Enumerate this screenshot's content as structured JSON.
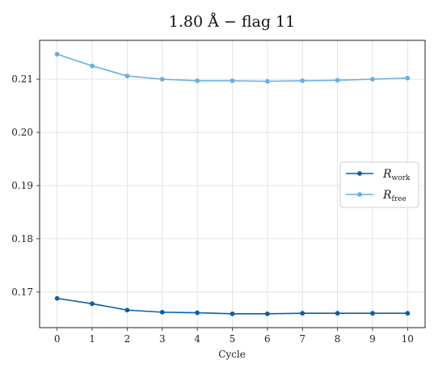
{
  "chart_data": {
    "type": "line",
    "title": "1.80 Å  −  flag 11",
    "xlabel": "Cycle",
    "ylabel": "",
    "x": [
      0,
      1,
      2,
      3,
      4,
      5,
      6,
      7,
      8,
      9,
      10
    ],
    "xlim": [
      -0.5,
      10.5
    ],
    "ylim": [
      0.1633,
      0.2173
    ],
    "xticks": [
      "0",
      "1",
      "2",
      "3",
      "4",
      "5",
      "6",
      "7",
      "8",
      "9",
      "10"
    ],
    "yticks": [
      "0.17",
      "0.18",
      "0.19",
      "0.20",
      "0.21"
    ],
    "ytick_values": [
      0.17,
      0.18,
      0.19,
      0.2,
      0.21
    ],
    "grid": true,
    "legend_position": "center-right",
    "series": [
      {
        "name": "R_work",
        "symbol": "R",
        "subscript": "work",
        "color": "#0a5fa8",
        "values": [
          0.1688,
          0.1678,
          0.1666,
          0.1662,
          0.1661,
          0.1659,
          0.1659,
          0.166,
          0.166,
          0.166,
          0.166
        ]
      },
      {
        "name": "R_free",
        "symbol": "R",
        "subscript": "free",
        "color": "#6aaee0",
        "values": [
          0.2147,
          0.2125,
          0.2106,
          0.21,
          0.2097,
          0.2097,
          0.2096,
          0.2097,
          0.2098,
          0.21,
          0.2102
        ]
      }
    ]
  }
}
